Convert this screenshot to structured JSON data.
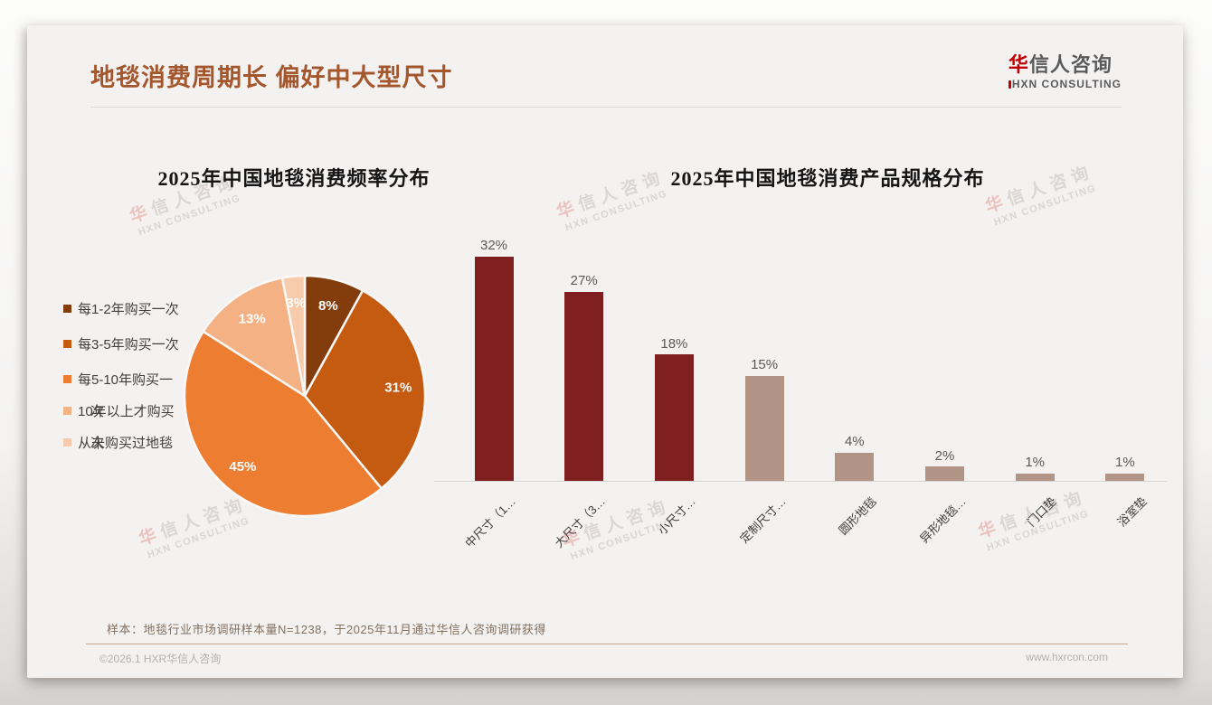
{
  "page": {
    "title": "地毯消费周期长 偏好中大型尺寸",
    "title_color": "#A4572C",
    "logo": {
      "cn_accent": "华",
      "cn_rest": "信人咨询",
      "en": "HXN CONSULTING",
      "accent_color": "#C00000"
    },
    "watermark": {
      "cn": "华信人咨询",
      "en": "HXN CONSULTING"
    },
    "footnote": "样本：地毯行业市场调研样本量N=1238，于2025年11月通过华信人咨询调研获得",
    "footer_left": "©2026.1 HXR华信人咨询",
    "footer_right": "www.hxrcon.com"
  },
  "chart_data": [
    {
      "type": "pie",
      "title": "2025年中国地毯消费频率分布",
      "labels": [
        "每1-2年购买一次",
        "每3-5年购买一次",
        "每5-10年购买一次",
        "10年以上才购买一次",
        "从未购买过地毯"
      ],
      "legend_display": [
        {
          "line1": "每1-2年购买一次",
          "line2": ""
        },
        {
          "line1": "每3-5年购买一次",
          "line2": ""
        },
        {
          "line1": "每5-10年购买一",
          "line2": "次"
        },
        {
          "line1": "10年以上才购买",
          "line2": "次"
        },
        {
          "line1": "从未购买过地毯",
          "line2": ""
        }
      ],
      "values": [
        8,
        31,
        45,
        13,
        3
      ],
      "value_labels": [
        "8%",
        "31%",
        "45%",
        "13%",
        "3%"
      ],
      "colors": [
        "#833C0C",
        "#C55A11",
        "#ED7D31",
        "#F4B183",
        "#F8CBAD"
      ],
      "data_label_color": "#FFFFFF",
      "legend_position": "left",
      "start_angle_deg": -90,
      "direction": "clockwise"
    },
    {
      "type": "bar",
      "title": "2025年中国地毯消费产品规格分布",
      "categories": [
        "中尺寸（1…",
        "大尺寸（3…",
        "小尺寸…",
        "定制尺寸…",
        "圆形地毯",
        "异形地毯…",
        "门口垫",
        "浴室垫"
      ],
      "values": [
        32,
        27,
        18,
        15,
        4,
        2,
        1,
        1
      ],
      "value_labels": [
        "32%",
        "27%",
        "18%",
        "15%",
        "4%",
        "2%",
        "1%",
        "1%"
      ],
      "bar_colors": [
        "#7F1F1F",
        "#7F1F1F",
        "#7F1F1F",
        "#B29486",
        "#B29486",
        "#B29486",
        "#B29486",
        "#B29486"
      ],
      "value_label_color": "#595959",
      "ylim": [
        0,
        34
      ],
      "grid": false,
      "gridlines": "off",
      "y_axis_labels": "hidden",
      "axis_line_color": "#D8D5D2"
    }
  ]
}
